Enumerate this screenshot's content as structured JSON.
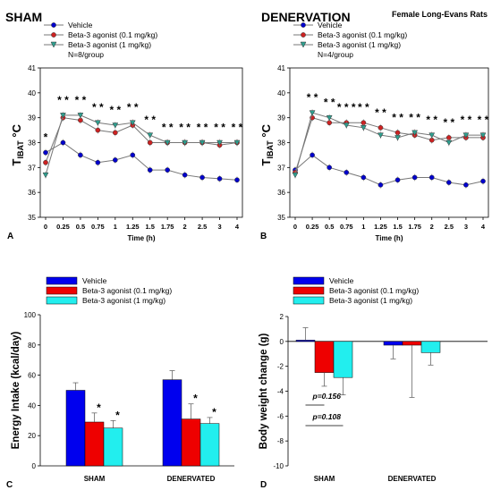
{
  "figure_label": "Female Long-Evans Rats",
  "chart_data": [
    {
      "panel": "A",
      "type": "line",
      "title": "SHAM",
      "xlabel": "Time (h)",
      "ylabel_main": "T",
      "ylabel_sub": "IBAT",
      "ylabel_unit": " °C",
      "ylim": [
        35,
        41
      ],
      "yticks": [
        35,
        36,
        37,
        38,
        39,
        40,
        41
      ],
      "x": [
        "0",
        "0.25",
        "0.5",
        "0.75",
        "1",
        "1.25",
        "1.5",
        "1.75",
        "2",
        "2.5",
        "3",
        "4"
      ],
      "n_note": "N=8/group",
      "legend": [
        "Vehicle",
        "Beta-3 agonist (0.1 mg/kg)",
        "Beta-3 agonist (1 mg/kg)"
      ],
      "colors": [
        "#0000cc",
        "#cc2222",
        "#2f9f8f"
      ],
      "series": [
        {
          "name": "Vehicle",
          "values": [
            37.6,
            38.0,
            37.5,
            37.2,
            37.3,
            37.5,
            36.9,
            36.9,
            36.7,
            36.6,
            36.55,
            36.5
          ]
        },
        {
          "name": "Beta-3 agonist (0.1 mg/kg)",
          "values": [
            37.2,
            39.0,
            38.9,
            38.5,
            38.4,
            38.7,
            38.0,
            38.0,
            38.0,
            38.0,
            37.9,
            38.0
          ]
        },
        {
          "name": "Beta-3 agonist (1 mg/kg)",
          "values": [
            36.7,
            39.1,
            39.1,
            38.8,
            38.7,
            38.8,
            38.3,
            38.0,
            38.0,
            38.0,
            38.0,
            38.0
          ]
        }
      ],
      "annotations": [
        "*",
        "* *",
        "* *",
        "* *",
        "* *",
        "* *",
        "* *",
        "* *",
        "* *",
        "* *",
        "* *",
        "* *"
      ]
    },
    {
      "panel": "B",
      "type": "line",
      "title": "DENERVATION",
      "xlabel": "Time (h)",
      "ylabel_main": "T",
      "ylabel_sub": "IBAT",
      "ylabel_unit": " °C",
      "ylim": [
        35,
        41
      ],
      "yticks": [
        35,
        36,
        37,
        38,
        39,
        40,
        41
      ],
      "x": [
        "0",
        "0.25",
        "0.5",
        "0.75",
        "1",
        "1.25",
        "1.5",
        "1.75",
        "2",
        "2.5",
        "3",
        "4"
      ],
      "n_note": "N=4/group",
      "legend": [
        "Vehicle",
        "Beta-3 agonist (0.1 mg/kg)",
        "Beta-3 agonist (1 mg/kg)"
      ],
      "colors": [
        "#0000cc",
        "#cc2222",
        "#2f9f8f"
      ],
      "series": [
        {
          "name": "Vehicle",
          "values": [
            36.9,
            37.5,
            37.0,
            36.8,
            36.6,
            36.3,
            36.5,
            36.6,
            36.6,
            36.4,
            36.3,
            36.45
          ]
        },
        {
          "name": "Beta-3 agonist (0.1 mg/kg)",
          "values": [
            36.8,
            39.0,
            38.8,
            38.8,
            38.8,
            38.6,
            38.4,
            38.3,
            38.1,
            38.2,
            38.2,
            38.2
          ]
        },
        {
          "name": "Beta-3 agonist (1 mg/kg)",
          "values": [
            36.7,
            39.2,
            39.0,
            38.7,
            38.6,
            38.3,
            38.2,
            38.4,
            38.3,
            38.0,
            38.3,
            38.3
          ]
        }
      ],
      "annotations": [
        "",
        "* *",
        "* *",
        "* * *",
        "* *",
        "* *",
        "* *",
        "* *",
        "* *",
        "* *",
        "* *",
        "* *"
      ]
    },
    {
      "panel": "C",
      "type": "bar",
      "ylabel": "Energy Intake (kcal/day)",
      "ylim": [
        0,
        100
      ],
      "yticks": [
        0,
        20,
        40,
        60,
        80,
        100
      ],
      "categories": [
        "SHAM",
        "DENERVATED"
      ],
      "legend": [
        "Vehicle",
        "Beta-3 agonist (0.1 mg/kg)",
        "Beta-3 agonist (1 mg/kg)"
      ],
      "colors": [
        "#0000ee",
        "#ee0000",
        "#22eeee"
      ],
      "series": [
        {
          "name": "Vehicle",
          "values": [
            50,
            57
          ],
          "err": [
            5,
            6
          ]
        },
        {
          "name": "Beta-3 agonist (0.1 mg/kg)",
          "values": [
            29,
            31
          ],
          "err": [
            6,
            10
          ]
        },
        {
          "name": "Beta-3 agonist (1 mg/kg)",
          "values": [
            25,
            28
          ],
          "err": [
            5,
            4
          ]
        }
      ],
      "annotations": [
        [
          "",
          "*",
          "*"
        ],
        [
          "",
          "*",
          "*"
        ]
      ]
    },
    {
      "panel": "D",
      "type": "bar",
      "ylabel": "Body weight change (g)",
      "ylim": [
        -10,
        2
      ],
      "yticks": [
        -10,
        -8,
        -6,
        -4,
        -2,
        0,
        2
      ],
      "categories": [
        "SHAM",
        "DENERVATED"
      ],
      "legend": [
        "Vehicle",
        "Beta-3 agonist (0.1 mg/kg)",
        "Beta-3 agonist (1 mg/kg)"
      ],
      "colors": [
        "#0000ee",
        "#ee0000",
        "#22eeee"
      ],
      "series": [
        {
          "name": "Vehicle",
          "values": [
            0.1,
            -0.3
          ],
          "err": [
            1.0,
            1.1
          ]
        },
        {
          "name": "Beta-3 agonist (0.1 mg/kg)",
          "values": [
            -2.5,
            -0.3
          ],
          "err": [
            1.1,
            4.2
          ]
        },
        {
          "name": "Beta-3 agonist (1 mg/kg)",
          "values": [
            -2.9,
            -0.9
          ],
          "err": [
            1.4,
            1.0
          ]
        }
      ],
      "pvalues": [
        "p=0.156",
        "p=0.108"
      ]
    }
  ]
}
